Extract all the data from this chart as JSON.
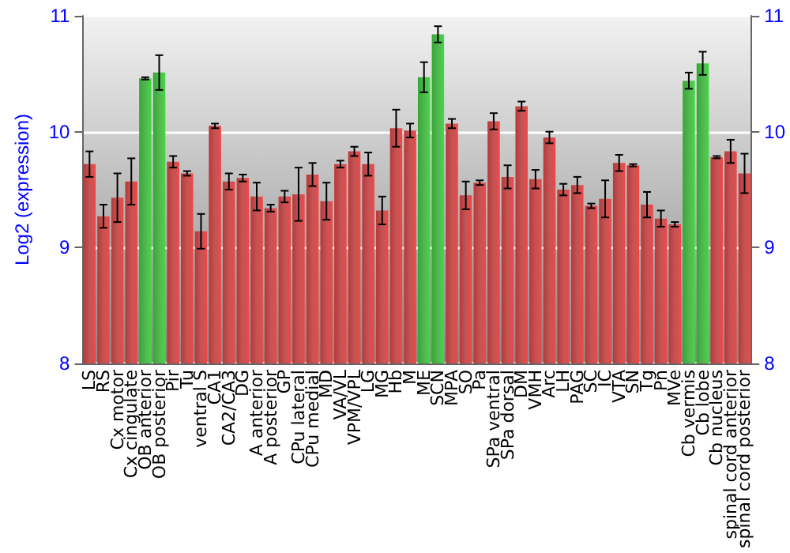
{
  "chart_data": {
    "type": "bar",
    "ylabel": "Log2 (expression)",
    "categories": [
      "LS",
      "RS",
      "Cx motor",
      "Cx cingulate",
      "OB anterior",
      "OB posterior",
      "Pir",
      "Tu",
      "ventral S",
      "CA1",
      "CA2/CA3",
      "DG",
      "A anterior",
      "A posterior",
      "GP",
      "CPu lateral",
      "CPu medial",
      "MD",
      "VA/VL",
      "VPM/VPL",
      "LG",
      "MG",
      "Hb",
      "M",
      "ME",
      "SCN",
      "MPA",
      "SO",
      "Pa",
      "SPa ventral",
      "SPa dorsal",
      "DM",
      "VMH",
      "Arc",
      "LH",
      "PAG",
      "SC",
      "IC",
      "VTA",
      "SN",
      "Tg",
      "Pn",
      "MVe",
      "Cb vermis",
      "Cb lobe",
      "Cb nucleus",
      "spinal cord anterior",
      "spinal cord posterior"
    ],
    "values": [
      9.72,
      9.27,
      9.43,
      9.57,
      10.46,
      10.51,
      9.74,
      9.64,
      9.14,
      10.05,
      9.57,
      9.6,
      9.44,
      9.34,
      9.44,
      9.46,
      9.63,
      9.4,
      9.72,
      9.83,
      9.72,
      9.32,
      10.03,
      10.01,
      10.47,
      10.84,
      10.07,
      9.45,
      9.56,
      10.09,
      9.61,
      10.22,
      9.59,
      9.95,
      9.5,
      9.54,
      9.36,
      9.42,
      9.73,
      9.71,
      9.37,
      9.25,
      9.2,
      10.44,
      10.59,
      9.78,
      9.83,
      9.64
    ],
    "errors": [
      0.11,
      0.1,
      0.21,
      0.2,
      0.01,
      0.15,
      0.05,
      0.02,
      0.15,
      0.02,
      0.07,
      0.03,
      0.12,
      0.03,
      0.05,
      0.23,
      0.1,
      0.16,
      0.03,
      0.04,
      0.1,
      0.12,
      0.16,
      0.06,
      0.13,
      0.07,
      0.04,
      0.12,
      0.02,
      0.07,
      0.1,
      0.04,
      0.08,
      0.05,
      0.05,
      0.07,
      0.02,
      0.16,
      0.07,
      0.01,
      0.11,
      0.07,
      0.02,
      0.07,
      0.1,
      0.01,
      0.1,
      0.17
    ],
    "colors": [
      "#b83838",
      "#b83838",
      "#b83838",
      "#b83838",
      "#34a834",
      "#34a834",
      "#b83838",
      "#b83838",
      "#b83838",
      "#b83838",
      "#b83838",
      "#b83838",
      "#b83838",
      "#b83838",
      "#b83838",
      "#b83838",
      "#b83838",
      "#b83838",
      "#b83838",
      "#b83838",
      "#b83838",
      "#b83838",
      "#b83838",
      "#b83838",
      "#34a834",
      "#34a834",
      "#b83838",
      "#b83838",
      "#b83838",
      "#b83838",
      "#b83838",
      "#b83838",
      "#b83838",
      "#b83838",
      "#b83838",
      "#b83838",
      "#b83838",
      "#b83838",
      "#b83838",
      "#b83838",
      "#b83838",
      "#b83838",
      "#b83838",
      "#34a834",
      "#34a834",
      "#b83838",
      "#b83838",
      "#b83838"
    ],
    "ylim": [
      8,
      11
    ],
    "yticks": [
      8,
      9,
      10,
      11
    ],
    "y2lim": [
      8,
      11
    ],
    "y2ticks": [
      8,
      9,
      10,
      11
    ],
    "grid": "y"
  }
}
